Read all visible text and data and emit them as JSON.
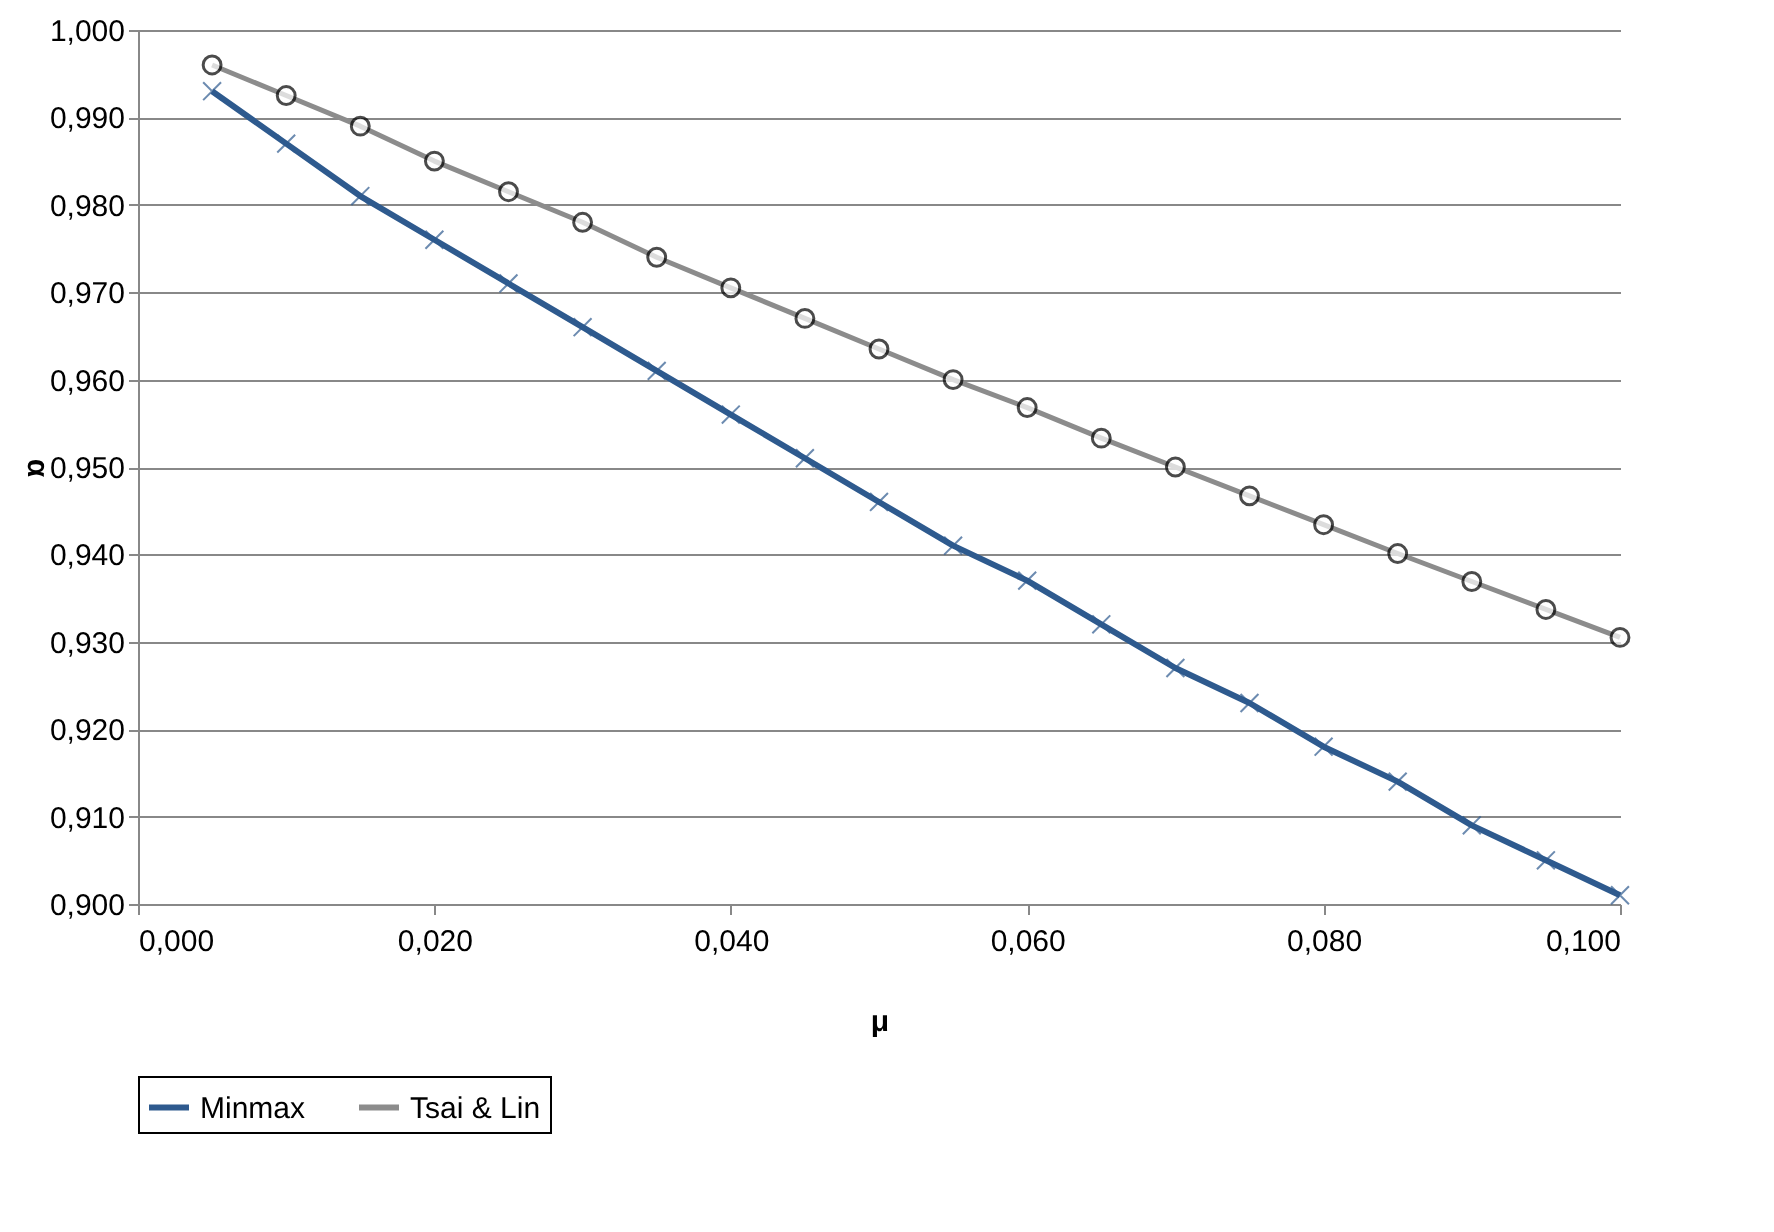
{
  "chart_data": {
    "type": "line",
    "xlabel": "μ",
    "ylabel": "α",
    "x": [
      0.005,
      0.01,
      0.015,
      0.02,
      0.025,
      0.03,
      0.035,
      0.04,
      0.045,
      0.05,
      0.055,
      0.06,
      0.065,
      0.07,
      0.075,
      0.08,
      0.085,
      0.09,
      0.095,
      0.1
    ],
    "series": [
      {
        "name": "Minmax",
        "color": "#2e5a8e",
        "marker": "cross",
        "values": [
          0.993,
          0.987,
          0.981,
          0.976,
          0.971,
          0.966,
          0.961,
          0.956,
          0.951,
          0.946,
          0.941,
          0.937,
          0.932,
          0.927,
          0.923,
          0.918,
          0.914,
          0.909,
          0.905,
          0.901
        ]
      },
      {
        "name": "Tsai & Lin",
        "color": "#8c8c8c",
        "marker": "circle",
        "values": [
          0.996,
          0.9925,
          0.989,
          0.985,
          0.9815,
          0.978,
          0.974,
          0.9705,
          0.967,
          0.9635,
          0.96,
          0.9568,
          0.9533,
          0.95,
          0.9467,
          0.9434,
          0.9401,
          0.9369,
          0.9337,
          0.9305
        ]
      }
    ],
    "xlim": [
      0,
      0.1
    ],
    "xticks": [
      {
        "value": 0,
        "label": "0,000"
      },
      {
        "value": 0.02,
        "label": "0,020"
      },
      {
        "value": 0.04,
        "label": "0,040"
      },
      {
        "value": 0.06,
        "label": "0,060"
      },
      {
        "value": 0.08,
        "label": "0,080"
      },
      {
        "value": 0.1,
        "label": "0,100"
      }
    ],
    "ylim": [
      0.9,
      1
    ],
    "yticks": [
      {
        "value": 0.9,
        "label": "0,900"
      },
      {
        "value": 0.91,
        "label": "0,910"
      },
      {
        "value": 0.92,
        "label": "0,920"
      },
      {
        "value": 0.93,
        "label": "0,930"
      },
      {
        "value": 0.94,
        "label": "0,940"
      },
      {
        "value": 0.95,
        "label": "0,950"
      },
      {
        "value": 0.96,
        "label": "0,960"
      },
      {
        "value": 0.97,
        "label": "0,970"
      },
      {
        "value": 0.98,
        "label": "0,980"
      },
      {
        "value": 0.99,
        "label": "0,990"
      },
      {
        "value": 1,
        "label": "1,000"
      }
    ],
    "grid": "y",
    "legend": "bottom",
    "line_style": "solid"
  }
}
